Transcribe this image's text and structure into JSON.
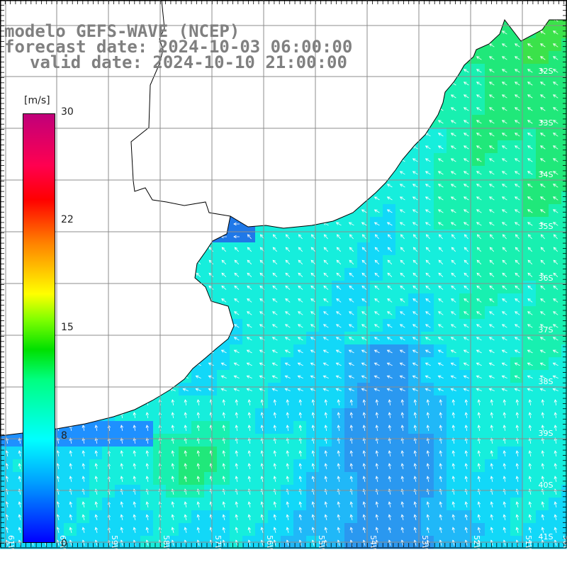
{
  "title": {
    "line1": "modelo GEFS-WAVE (NCEP)",
    "line2": "forecast date: 2024-10-03 06:00:00",
    "line3": "valid date: 2024-10-10 21:00:00"
  },
  "colorbar": {
    "unit": "[m/s]",
    "ticks": [
      "30",
      "22",
      "15",
      "8",
      "0"
    ],
    "colors": [
      "#0000ff",
      "#00a0ff",
      "#00ffff",
      "#00ff80",
      "#00e000",
      "#ffff00",
      "#ff8000",
      "#ff0000",
      "#c0007a"
    ]
  },
  "map": {
    "lat_labels": [
      "32S",
      "33S",
      "34S",
      "35S",
      "36S",
      "37S",
      "38S",
      "39S",
      "40S",
      "41S"
    ],
    "lon_labels": [
      "61W",
      "60W",
      "59W",
      "58W",
      "57W",
      "56W",
      "55W",
      "54W",
      "53W",
      "52W",
      "51W",
      "50W"
    ],
    "variable": "wind speed",
    "land_color": "#ffffff",
    "grid_color": "#909090"
  }
}
